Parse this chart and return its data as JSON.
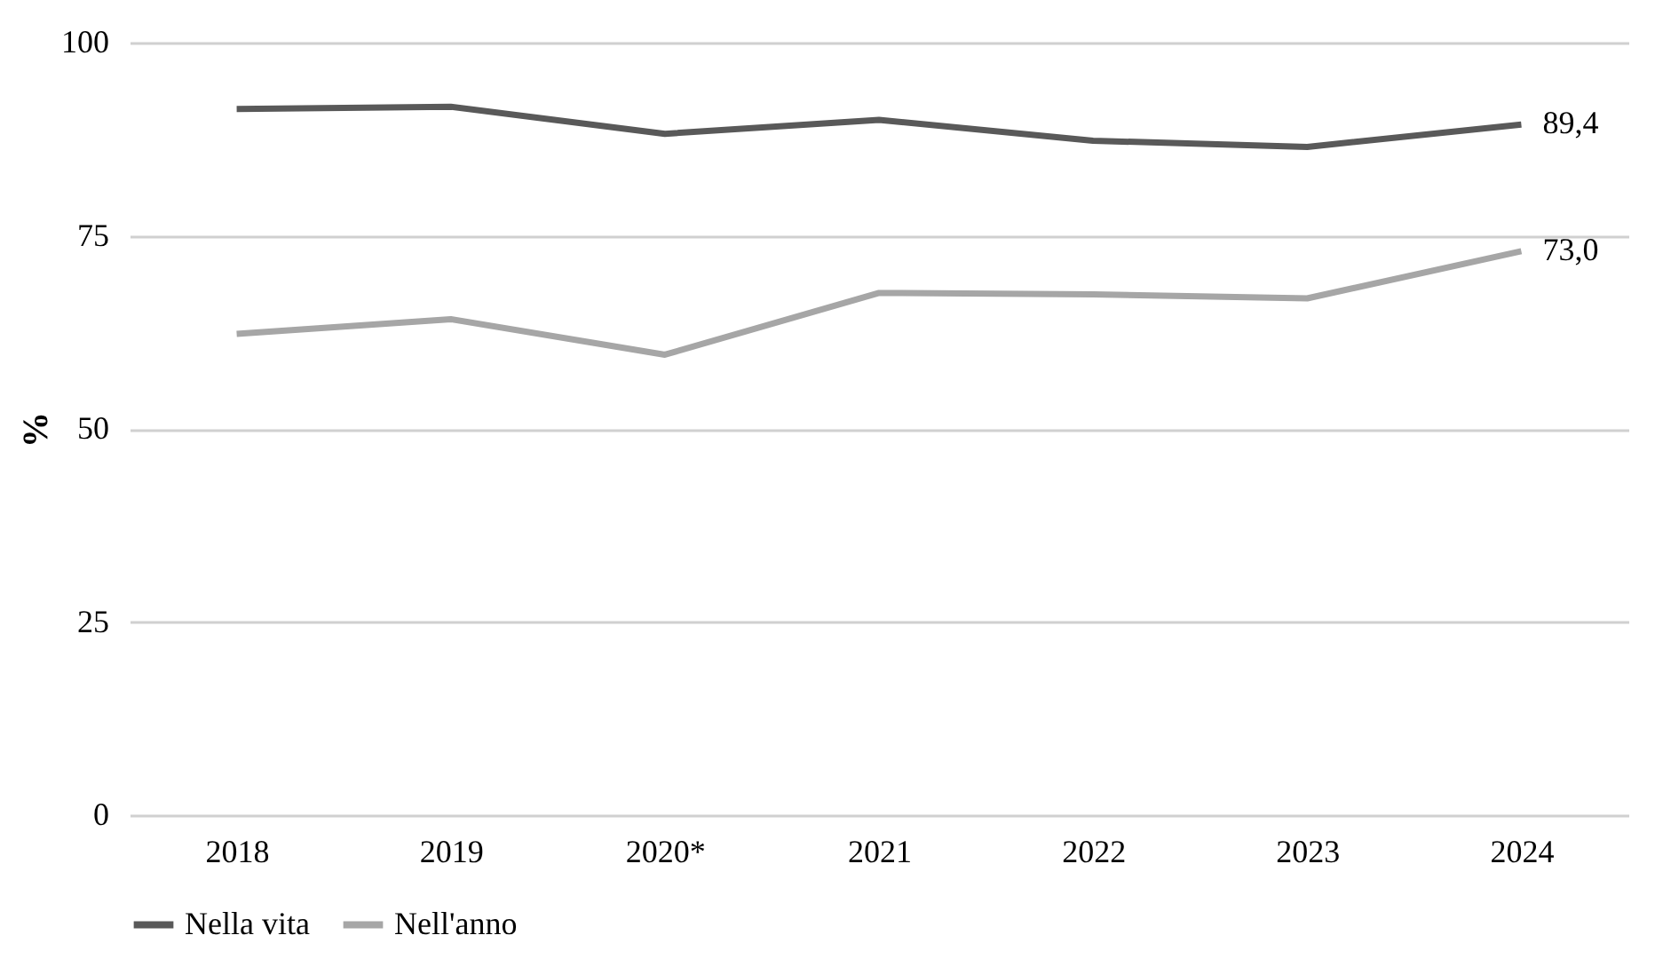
{
  "chart_data": {
    "type": "line",
    "ylabel": "%",
    "categories": [
      "2018",
      "2019",
      "2020*",
      "2021",
      "2022",
      "2023",
      "2024"
    ],
    "series": [
      {
        "name": "Nella vita",
        "color": "#595959",
        "values": [
          91.4,
          91.7,
          88.2,
          90.0,
          87.3,
          86.5,
          89.4
        ],
        "value_labels": [
          null,
          null,
          null,
          null,
          null,
          null,
          "89,4"
        ]
      },
      {
        "name": "Nell'anno",
        "color": "#a6a6a6",
        "values": [
          62.3,
          64.2,
          59.6,
          67.6,
          67.4,
          66.9,
          73.0
        ],
        "value_labels": [
          null,
          null,
          null,
          null,
          null,
          null,
          "73,0"
        ]
      }
    ],
    "ylim": [
      0,
      100
    ],
    "yticks": [
      0,
      25,
      50,
      75,
      100
    ],
    "grid": "y",
    "legend": "bottom",
    "marker": "none",
    "line_style": "solid"
  }
}
